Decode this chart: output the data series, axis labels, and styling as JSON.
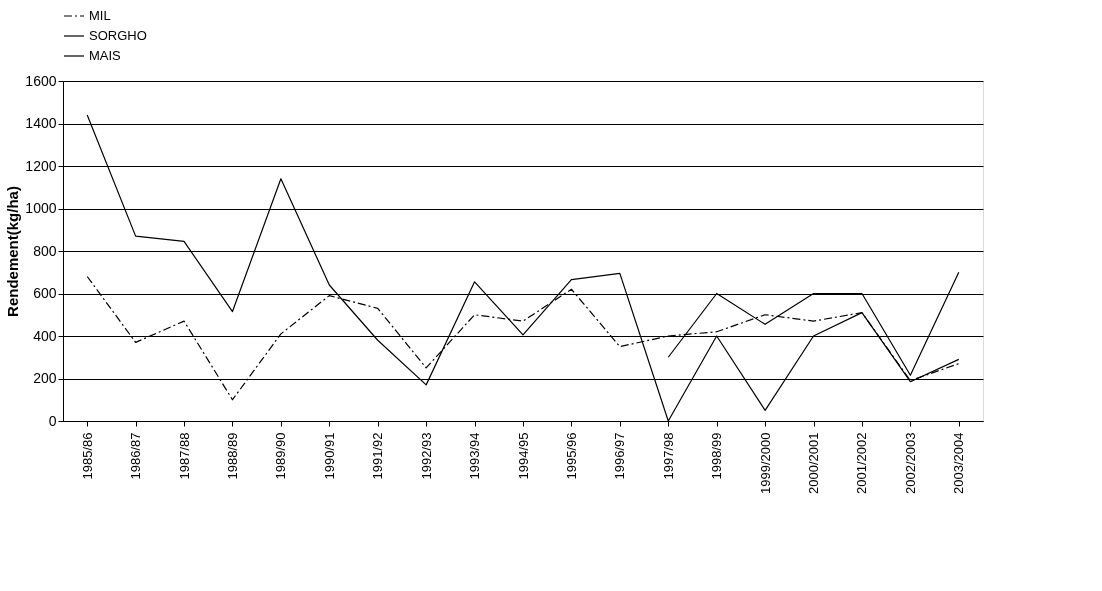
{
  "chart_data": {
    "type": "line",
    "ylabel": "Rendement(kg/ha)",
    "categories": [
      "1985/86",
      "1986/87",
      "1987/88",
      "1988/89",
      "1989/90",
      "1990/91",
      "1991/92",
      "1992/93",
      "1993/94",
      "1994/95",
      "1995/96",
      "1996/97",
      "1997/98",
      "1998/99",
      "1999/2000",
      "2000/2001",
      "2001/2002",
      "2002/2003",
      "2003/2004"
    ],
    "series": [
      {
        "name": "MIL",
        "color": "#000000",
        "line_style": "dashed",
        "values": [
          680,
          370,
          470,
          100,
          410,
          590,
          530,
          250,
          500,
          470,
          620,
          350,
          400,
          420,
          500,
          470,
          510,
          190,
          270
        ]
      },
      {
        "name": "SORGHO",
        "color": "#000000",
        "line_style": "solid",
        "values": [
          1440,
          870,
          845,
          515,
          1140,
          640,
          380,
          170,
          655,
          405,
          665,
          695,
          0,
          400,
          50,
          400,
          510,
          185,
          290
        ]
      },
      {
        "name": "MAIS",
        "color": "#000000",
        "line_style": "solid",
        "values": [
          null,
          null,
          null,
          null,
          null,
          null,
          null,
          null,
          null,
          null,
          null,
          null,
          300,
          600,
          455,
          600,
          600,
          215,
          700
        ]
      }
    ],
    "ylim": [
      0,
      1600
    ],
    "yticks": [
      0,
      200,
      400,
      600,
      800,
      1000,
      1200,
      1400,
      1600
    ],
    "grid": "y",
    "legend": "top",
    "marker": "none"
  }
}
